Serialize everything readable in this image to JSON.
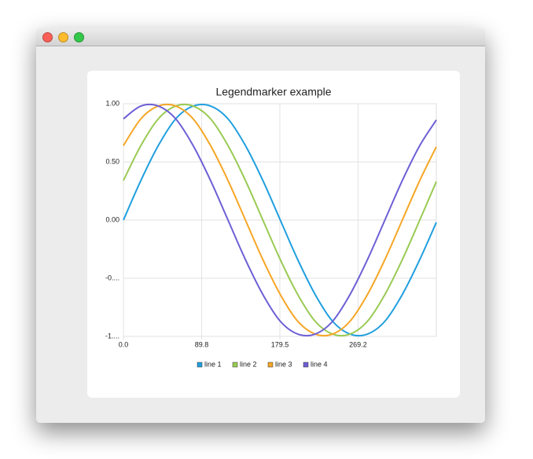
{
  "chart_data": {
    "type": "line",
    "title": "Legendmarker example",
    "x": [
      0,
      20,
      40,
      60,
      80,
      100,
      120,
      140,
      160,
      180,
      200,
      220,
      240,
      260,
      280,
      300,
      320,
      340,
      359
    ],
    "series": [
      {
        "name": "line 1",
        "color": "#209fdf",
        "values": [
          0,
          0.34,
          0.64,
          0.87,
          0.98,
          0.98,
          0.87,
          0.64,
          0.34,
          0,
          -0.34,
          -0.64,
          -0.87,
          -0.98,
          -0.98,
          -0.87,
          -0.64,
          -0.34,
          -0.02
        ]
      },
      {
        "name": "line 2",
        "color": "#99ca53",
        "values": [
          0.34,
          0.64,
          0.87,
          0.98,
          0.98,
          0.87,
          0.64,
          0.34,
          0,
          -0.34,
          -0.64,
          -0.87,
          -0.98,
          -0.98,
          -0.87,
          -0.64,
          -0.34,
          0,
          0.33
        ]
      },
      {
        "name": "line 3",
        "color": "#f6a625",
        "values": [
          0.64,
          0.87,
          0.98,
          0.98,
          0.87,
          0.64,
          0.34,
          0,
          -0.34,
          -0.64,
          -0.87,
          -0.98,
          -0.98,
          -0.87,
          -0.64,
          -0.34,
          0,
          0.34,
          0.63
        ]
      },
      {
        "name": "line 4",
        "color": "#6d5fd5",
        "values": [
          0.87,
          0.98,
          0.98,
          0.87,
          0.64,
          0.34,
          0,
          -0.34,
          -0.64,
          -0.87,
          -0.98,
          -0.98,
          -0.87,
          -0.64,
          -0.34,
          0,
          0.34,
          0.64,
          0.86
        ]
      }
    ],
    "xlim": [
      0,
      359
    ],
    "xticks": [
      {
        "value": 0,
        "label": "0.0"
      },
      89.8,
      179.5,
      269.2
    ],
    "ylim": [
      -1,
      1
    ],
    "yticks": [
      {
        "value": -1,
        "label": "-1...."
      },
      {
        "value": -0.5,
        "label": "-0...."
      },
      {
        "value": 0,
        "label": "0.00"
      },
      {
        "value": 0.5,
        "label": "0.50"
      },
      {
        "value": 1,
        "label": "1.00"
      }
    ],
    "grid": true,
    "legend": "bottom"
  }
}
